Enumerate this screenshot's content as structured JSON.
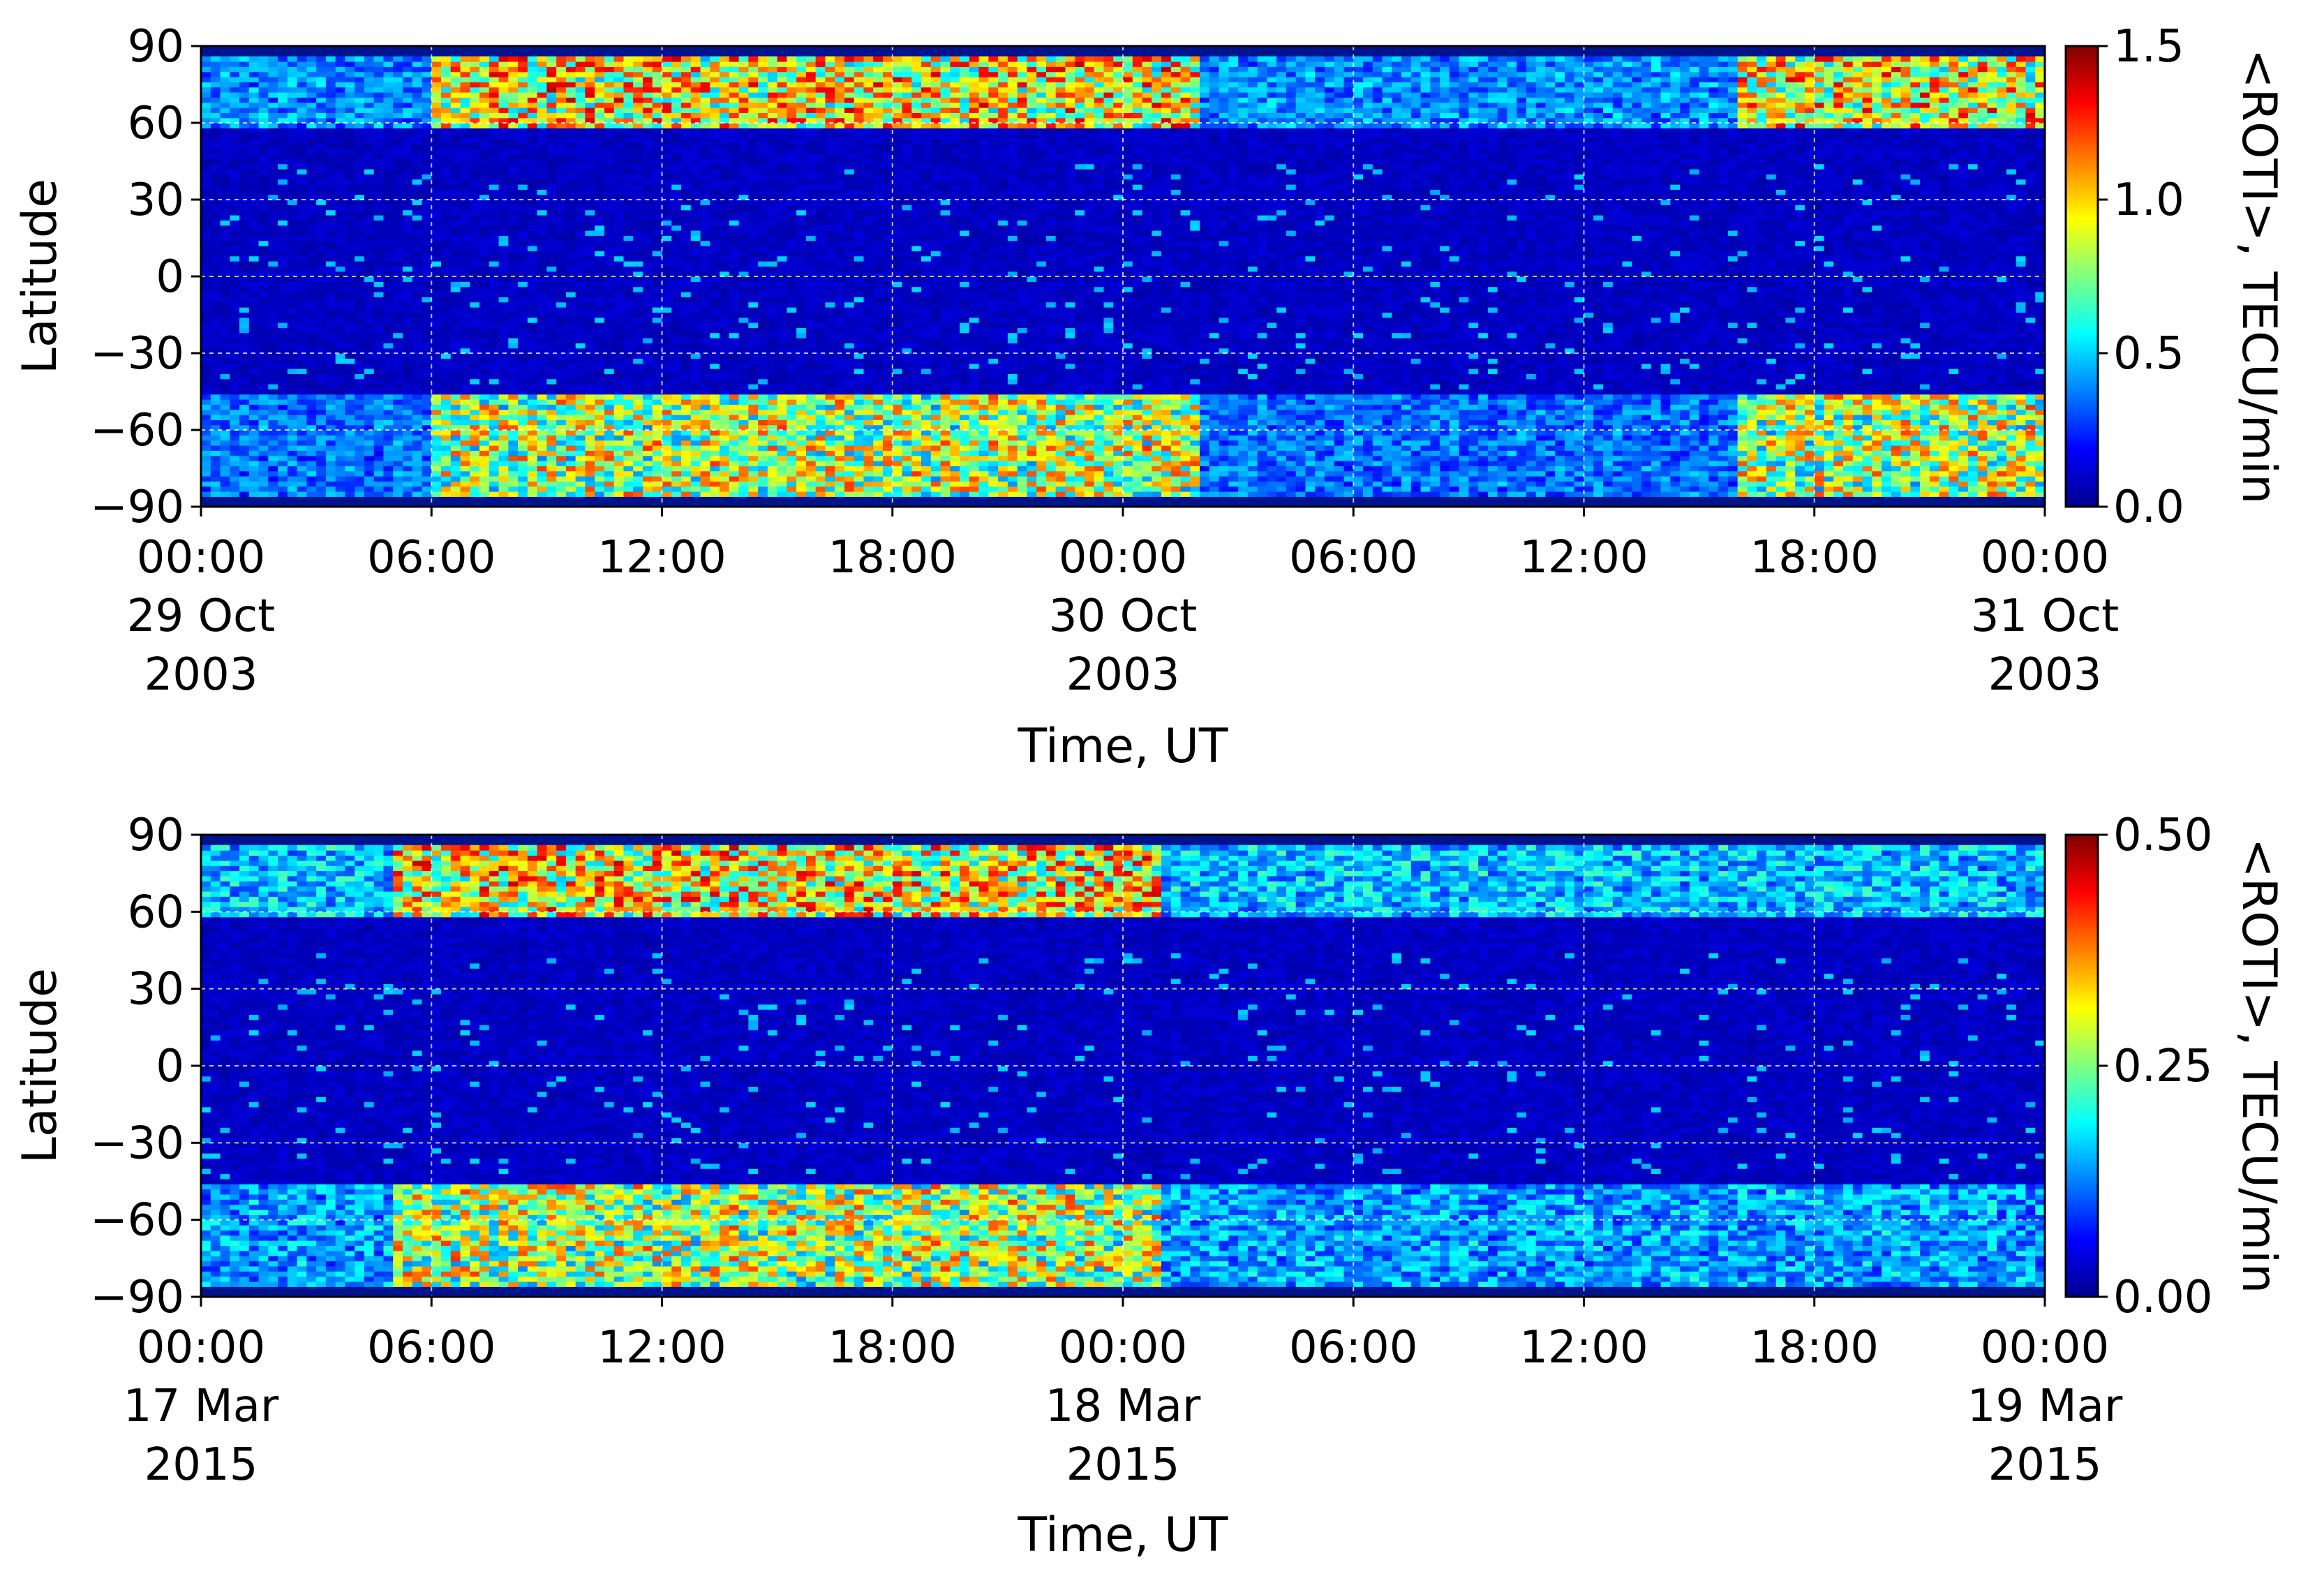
{
  "chart_data": [
    {
      "type": "heatmap",
      "ylabel": "Latitude",
      "xlabel": "Time, UT",
      "ylim": [
        -90,
        90
      ],
      "yticks": [
        "90",
        "60",
        "30",
        "0",
        "−30",
        "−60",
        "−90"
      ],
      "xticks": [
        {
          "time": "00:00",
          "line2": "29 Oct",
          "line3": "2003"
        },
        {
          "time": "06:00",
          "line2": "",
          "line3": ""
        },
        {
          "time": "12:00",
          "line2": "",
          "line3": ""
        },
        {
          "time": "18:00",
          "line2": "",
          "line3": ""
        },
        {
          "time": "00:00",
          "line2": "30 Oct",
          "line3": "2003"
        },
        {
          "time": "06:00",
          "line2": "",
          "line3": ""
        },
        {
          "time": "12:00",
          "line2": "",
          "line3": ""
        },
        {
          "time": "18:00",
          "line2": "",
          "line3": ""
        },
        {
          "time": "00:00",
          "line2": "31 Oct",
          "line3": "2003"
        }
      ],
      "x_range_hours": [
        0,
        48
      ],
      "grid": true,
      "colorbar": {
        "label": "<ROTI>, TECU/min",
        "range": [
          0,
          1.5
        ],
        "ticks": [
          "0.0",
          "0.5",
          "1.0",
          "1.5"
        ],
        "colormap": "jet"
      },
      "features": [
        {
          "region": "northern auroral oval",
          "lat_range": [
            58,
            85
          ],
          "level": "high"
        },
        {
          "region": "southern auroral oval",
          "lat_range": [
            -85,
            -45
          ],
          "level": "high"
        },
        {
          "region": "mid/low latitudes",
          "lat_range": [
            -45,
            58
          ],
          "level": "low"
        }
      ]
    },
    {
      "type": "heatmap",
      "ylabel": "Latitude",
      "xlabel": "Time, UT",
      "ylim": [
        -90,
        90
      ],
      "yticks": [
        "90",
        "60",
        "30",
        "0",
        "−30",
        "−60",
        "−90"
      ],
      "xticks": [
        {
          "time": "00:00",
          "line2": "17 Mar",
          "line3": "2015"
        },
        {
          "time": "06:00",
          "line2": "",
          "line3": ""
        },
        {
          "time": "12:00",
          "line2": "",
          "line3": ""
        },
        {
          "time": "18:00",
          "line2": "",
          "line3": ""
        },
        {
          "time": "00:00",
          "line2": "18 Mar",
          "line3": "2015"
        },
        {
          "time": "06:00",
          "line2": "",
          "line3": ""
        },
        {
          "time": "12:00",
          "line2": "",
          "line3": ""
        },
        {
          "time": "18:00",
          "line2": "",
          "line3": ""
        },
        {
          "time": "00:00",
          "line2": "19 Mar",
          "line3": "2015"
        }
      ],
      "x_range_hours": [
        0,
        48
      ],
      "grid": true,
      "colorbar": {
        "label": "<ROTI>, TECU/min",
        "range": [
          0,
          0.5
        ],
        "ticks": [
          "0.00",
          "0.25",
          "0.50"
        ],
        "colormap": "jet"
      },
      "features": [
        {
          "region": "northern auroral oval",
          "lat_range": [
            58,
            88
          ],
          "level": "high"
        },
        {
          "region": "southern auroral oval",
          "lat_range": [
            -88,
            -45
          ],
          "level": "high"
        },
        {
          "region": "mid/low latitudes",
          "lat_range": [
            -45,
            58
          ],
          "level": "low"
        }
      ]
    }
  ]
}
